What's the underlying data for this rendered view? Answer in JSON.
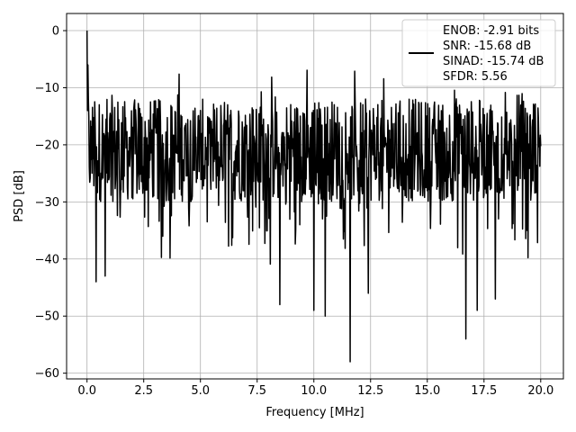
{
  "chart_data": {
    "type": "line",
    "xlabel": "Frequency [MHz]",
    "ylabel": "PSD [dB]",
    "xlim": [
      -0.9,
      21.0
    ],
    "ylim": [
      -61.0,
      3.0
    ],
    "xticks": [
      0.0,
      2.5,
      5.0,
      7.5,
      10.0,
      12.5,
      15.0,
      17.5,
      20.0
    ],
    "xtick_labels": [
      "0.0",
      "2.5",
      "5.0",
      "7.5",
      "10.0",
      "12.5",
      "15.0",
      "17.5",
      "20.0"
    ],
    "yticks": [
      0,
      -10,
      -20,
      -30,
      -40,
      -50,
      -60
    ],
    "ytick_labels": [
      "0",
      "−10",
      "−20",
      "−30",
      "−40",
      "−50",
      "−60"
    ],
    "grid": true,
    "legend": {
      "placement": "top-right",
      "entries": [
        "ENOB: -2.91 bits",
        "SNR: -15.68 dB",
        "SINAD: -15.74 dB",
        "SFDR: 5.56"
      ]
    },
    "series": [
      {
        "color": "#000000",
        "noise_floor_db": -21,
        "noise_band_db": [
          -32,
          -13
        ],
        "peak": {
          "x": 0.0,
          "y": 0.0
        },
        "notable_dips": [
          {
            "x": 0.4,
            "y": -44
          },
          {
            "x": 0.8,
            "y": -43
          },
          {
            "x": 8.5,
            "y": -48
          },
          {
            "x": 10.0,
            "y": -49
          },
          {
            "x": 10.5,
            "y": -50
          },
          {
            "x": 11.6,
            "y": -58
          },
          {
            "x": 12.4,
            "y": -46
          },
          {
            "x": 16.7,
            "y": -54
          },
          {
            "x": 17.2,
            "y": -49
          },
          {
            "x": 18.0,
            "y": -47
          }
        ]
      }
    ]
  }
}
